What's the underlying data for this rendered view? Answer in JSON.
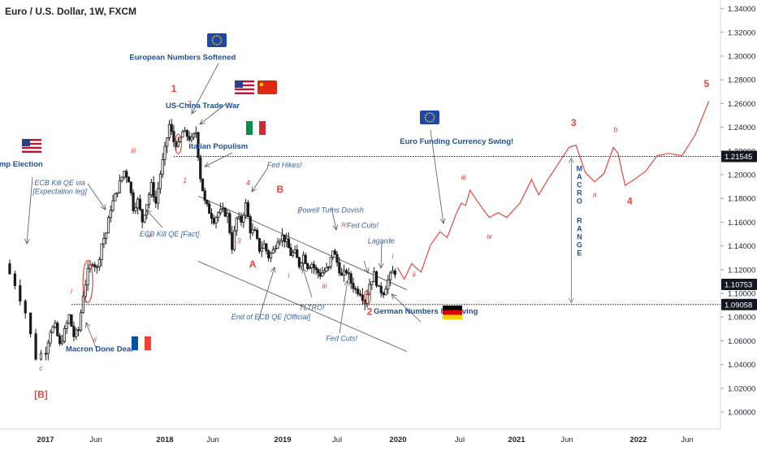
{
  "header": {
    "title": "Euro / U.S. Dollar, 1W, FXCM"
  },
  "colors": {
    "background": "#ffffff",
    "candle": "#1a1a1a",
    "projection": "#e8473f",
    "wave_label": "#e8473f",
    "annotation_blue": "#1f4e96",
    "annotation_italic": "#3a64a8",
    "price_box": "#131722",
    "axis_text": "#1e222d"
  },
  "chart_data": {
    "type": "candlestick",
    "symbol": "EURUSD",
    "timeframe": "1W",
    "source": "FXCM",
    "x_ticks": [
      "2017",
      "Jun",
      "2018",
      "Jun",
      "2019",
      "Jul",
      "2020",
      "Jul",
      "2021",
      "Jun",
      "2022",
      "Jun"
    ],
    "y_ticks": [
      "1.00000",
      "1.02000",
      "1.04000",
      "1.06000",
      "1.08000",
      "1.10000",
      "1.12000",
      "1.14000",
      "1.16000",
      "1.18000",
      "1.20000",
      "1.22000",
      "1.24000",
      "1.26000",
      "1.28000",
      "1.30000",
      "1.32000",
      "1.34000"
    ],
    "ylim": [
      0.985,
      1.348
    ],
    "horizontal_levels": [
      {
        "label": "1.21545",
        "value": 1.21545
      },
      {
        "label": "1.09058",
        "value": 1.09058
      }
    ],
    "last_price": {
      "label": "1.10753",
      "value": 1.10753
    },
    "price_path": [
      {
        "d": "2016-11-14",
        "v": 1.125
      },
      {
        "d": "2016-11-28",
        "v": 1.108
      },
      {
        "d": "2016-12-12",
        "v": 1.084
      },
      {
        "d": "2016-12-26",
        "v": 1.046
      },
      {
        "d": "2017-01-09",
        "v": 1.052
      },
      {
        "d": "2017-01-23",
        "v": 1.069
      },
      {
        "d": "2017-02-06",
        "v": 1.072
      },
      {
        "d": "2017-02-20",
        "v": 1.056
      },
      {
        "d": "2017-03-06",
        "v": 1.068
      },
      {
        "d": "2017-03-20",
        "v": 1.081
      },
      {
        "d": "2017-04-03",
        "v": 1.064
      },
      {
        "d": "2017-04-17",
        "v": 1.069
      },
      {
        "d": "2017-05-01",
        "v": 1.099
      },
      {
        "d": "2017-05-15",
        "v": 1.118
      },
      {
        "d": "2017-05-29",
        "v": 1.127
      },
      {
        "d": "2017-06-12",
        "v": 1.121
      },
      {
        "d": "2017-06-26",
        "v": 1.142
      },
      {
        "d": "2017-07-10",
        "v": 1.151
      },
      {
        "d": "2017-07-24",
        "v": 1.172
      },
      {
        "d": "2017-08-07",
        "v": 1.182
      },
      {
        "d": "2017-08-21",
        "v": 1.193
      },
      {
        "d": "2017-09-04",
        "v": 1.203
      },
      {
        "d": "2017-09-18",
        "v": 1.196
      },
      {
        "d": "2017-10-02",
        "v": 1.172
      },
      {
        "d": "2017-10-16",
        "v": 1.178
      },
      {
        "d": "2017-10-30",
        "v": 1.161
      },
      {
        "d": "2017-11-13",
        "v": 1.176
      },
      {
        "d": "2017-11-27",
        "v": 1.191
      },
      {
        "d": "2017-12-11",
        "v": 1.176
      },
      {
        "d": "2017-12-25",
        "v": 1.201
      },
      {
        "d": "2018-01-08",
        "v": 1.221
      },
      {
        "d": "2018-01-22",
        "v": 1.242
      },
      {
        "d": "2018-02-05",
        "v": 1.228
      },
      {
        "d": "2018-02-19",
        "v": 1.225
      },
      {
        "d": "2018-03-05",
        "v": 1.236
      },
      {
        "d": "2018-03-19",
        "v": 1.233
      },
      {
        "d": "2018-04-02",
        "v": 1.229
      },
      {
        "d": "2018-04-16",
        "v": 1.236
      },
      {
        "d": "2018-04-30",
        "v": 1.198
      },
      {
        "d": "2018-05-14",
        "v": 1.177
      },
      {
        "d": "2018-05-28",
        "v": 1.169
      },
      {
        "d": "2018-06-11",
        "v": 1.162
      },
      {
        "d": "2018-06-25",
        "v": 1.168
      },
      {
        "d": "2018-07-09",
        "v": 1.169
      },
      {
        "d": "2018-07-23",
        "v": 1.166
      },
      {
        "d": "2018-08-06",
        "v": 1.139
      },
      {
        "d": "2018-08-20",
        "v": 1.163
      },
      {
        "d": "2018-09-03",
        "v": 1.161
      },
      {
        "d": "2018-09-17",
        "v": 1.175
      },
      {
        "d": "2018-10-01",
        "v": 1.153
      },
      {
        "d": "2018-10-15",
        "v": 1.151
      },
      {
        "d": "2018-10-29",
        "v": 1.137
      },
      {
        "d": "2018-11-12",
        "v": 1.141
      },
      {
        "d": "2018-11-26",
        "v": 1.131
      },
      {
        "d": "2018-12-10",
        "v": 1.136
      },
      {
        "d": "2018-12-24",
        "v": 1.146
      },
      {
        "d": "2019-01-07",
        "v": 1.148
      },
      {
        "d": "2019-01-21",
        "v": 1.143
      },
      {
        "d": "2019-02-04",
        "v": 1.133
      },
      {
        "d": "2019-02-18",
        "v": 1.134
      },
      {
        "d": "2019-03-04",
        "v": 1.124
      },
      {
        "d": "2019-03-18",
        "v": 1.132
      },
      {
        "d": "2019-04-01",
        "v": 1.123
      },
      {
        "d": "2019-04-15",
        "v": 1.125
      },
      {
        "d": "2019-04-29",
        "v": 1.119
      },
      {
        "d": "2019-05-13",
        "v": 1.116
      },
      {
        "d": "2019-05-27",
        "v": 1.119
      },
      {
        "d": "2019-06-10",
        "v": 1.121
      },
      {
        "d": "2019-06-24",
        "v": 1.137
      },
      {
        "d": "2019-07-08",
        "v": 1.126
      },
      {
        "d": "2019-07-22",
        "v": 1.114
      },
      {
        "d": "2019-08-05",
        "v": 1.119
      },
      {
        "d": "2019-08-19",
        "v": 1.109
      },
      {
        "d": "2019-09-02",
        "v": 1.103
      },
      {
        "d": "2019-09-16",
        "v": 1.101
      },
      {
        "d": "2019-09-30",
        "v": 1.093
      },
      {
        "d": "2019-10-14",
        "v": 1.108
      },
      {
        "d": "2019-10-28",
        "v": 1.116
      },
      {
        "d": "2019-11-11",
        "v": 1.103
      },
      {
        "d": "2019-11-25",
        "v": 1.101
      },
      {
        "d": "2019-12-09",
        "v": 1.111
      },
      {
        "d": "2019-12-23",
        "v": 1.118
      }
    ],
    "projection": [
      {
        "d": "2019-12-30",
        "v": 1.122
      },
      {
        "d": "2020-01-20",
        "v": 1.112
      },
      {
        "d": "2020-02-10",
        "v": 1.125
      },
      {
        "d": "2020-03-09",
        "v": 1.118
      },
      {
        "d": "2020-04-06",
        "v": 1.141
      },
      {
        "d": "2020-05-04",
        "v": 1.152
      },
      {
        "d": "2020-05-25",
        "v": 1.147
      },
      {
        "d": "2020-06-22",
        "v": 1.168
      },
      {
        "d": "2020-07-06",
        "v": 1.176
      },
      {
        "d": "2020-07-20",
        "v": 1.174
      },
      {
        "d": "2020-08-03",
        "v": 1.187
      },
      {
        "d": "2020-08-24",
        "v": 1.179
      },
      {
        "d": "2020-09-14",
        "v": 1.171
      },
      {
        "d": "2020-10-05",
        "v": 1.164
      },
      {
        "d": "2020-11-02",
        "v": 1.168
      },
      {
        "d": "2020-11-30",
        "v": 1.164
      },
      {
        "d": "2021-01-11",
        "v": 1.176
      },
      {
        "d": "2021-02-15",
        "v": 1.196
      },
      {
        "d": "2021-03-08",
        "v": 1.183
      },
      {
        "d": "2021-04-05",
        "v": 1.196
      },
      {
        "d": "2021-05-03",
        "v": 1.208
      },
      {
        "d": "2021-06-07",
        "v": 1.223
      },
      {
        "d": "2021-06-28",
        "v": 1.225
      },
      {
        "d": "2021-07-26",
        "v": 1.202
      },
      {
        "d": "2021-08-23",
        "v": 1.194
      },
      {
        "d": "2021-09-20",
        "v": 1.201
      },
      {
        "d": "2021-10-18",
        "v": 1.223
      },
      {
        "d": "2021-11-01",
        "v": 1.218
      },
      {
        "d": "2021-11-22",
        "v": 1.191
      },
      {
        "d": "2021-12-20",
        "v": 1.196
      },
      {
        "d": "2022-01-24",
        "v": 1.203
      },
      {
        "d": "2022-02-28",
        "v": 1.216
      },
      {
        "d": "2022-04-04",
        "v": 1.218
      },
      {
        "d": "2022-05-16",
        "v": 1.216
      },
      {
        "d": "2022-06-27",
        "v": 1.234
      },
      {
        "d": "2022-08-08",
        "v": 1.262
      }
    ],
    "channel_lines": [
      {
        "from": {
          "d": "2018-04-16",
          "v": 1.182
        },
        "to": {
          "d": "2020-01-27",
          "v": 1.103
        }
      },
      {
        "from": {
          "d": "2018-04-16",
          "v": 1.127
        },
        "to": {
          "d": "2020-01-27",
          "v": 1.051
        }
      }
    ],
    "wave_labels": [
      {
        "text": "1",
        "d": "2018-01-29",
        "v": 1.27,
        "size": "big"
      },
      {
        "text": "2",
        "d": "2019-10-07",
        "v": 1.082,
        "size": "big"
      },
      {
        "text": "3",
        "d": "2021-06-21",
        "v": 1.241,
        "size": "big"
      },
      {
        "text": "4",
        "d": "2021-12-06",
        "v": 1.175,
        "size": "big"
      },
      {
        "text": "5",
        "d": "2022-08-01",
        "v": 1.274,
        "size": "big"
      },
      {
        "text": "[B]",
        "d": "2016-12-26",
        "v": 1.012,
        "size": "big"
      },
      {
        "text": "A",
        "d": "2018-10-01",
        "v": 1.122,
        "size": "big"
      },
      {
        "text": "B",
        "d": "2018-12-24",
        "v": 1.185,
        "size": "big"
      },
      {
        "text": "c",
        "d": "2016-12-26",
        "v": 1.035,
        "size": "small"
      },
      {
        "text": "i",
        "d": "2017-03-20",
        "v": 1.1,
        "size": "small"
      },
      {
        "text": "ii",
        "d": "2017-05-29",
        "v": 1.059,
        "size": "small"
      },
      {
        "text": "iii",
        "d": "2017-09-25",
        "v": 1.218,
        "size": "small"
      },
      {
        "text": "iv",
        "d": "2017-11-13",
        "v": 1.147,
        "size": "small"
      },
      {
        "text": "2",
        "d": "2018-03-19",
        "v": 1.258,
        "size": "small"
      },
      {
        "text": "1",
        "d": "2018-03-05",
        "v": 1.193,
        "size": "small"
      },
      {
        "text": "3",
        "d": "2018-08-20",
        "v": 1.142,
        "size": "small"
      },
      {
        "text": "4",
        "d": "2018-09-17",
        "v": 1.191,
        "size": "small"
      },
      {
        "text": "i",
        "d": "2019-01-21",
        "v": 1.113,
        "size": "small"
      },
      {
        "text": "ii",
        "d": "2019-02-25",
        "v": 1.167,
        "size": "small"
      },
      {
        "text": "iii",
        "d": "2019-05-20",
        "v": 1.104,
        "size": "small"
      },
      {
        "text": "iv",
        "d": "2019-07-22",
        "v": 1.156,
        "size": "small"
      },
      {
        "text": "i",
        "d": "2019-12-16",
        "v": 1.129,
        "size": "small"
      },
      {
        "text": "ii",
        "d": "2020-02-17",
        "v": 1.114,
        "size": "small"
      },
      {
        "text": "iii",
        "d": "2020-07-13",
        "v": 1.196,
        "size": "small"
      },
      {
        "text": "iv",
        "d": "2020-10-05",
        "v": 1.146,
        "size": "small"
      },
      {
        "text": "a",
        "d": "2021-08-23",
        "v": 1.181,
        "size": "small"
      },
      {
        "text": "b",
        "d": "2021-10-25",
        "v": 1.236,
        "size": "small"
      }
    ],
    "annotations": [
      {
        "text": "European Numbers Softened",
        "style": "bold",
        "d": "2018-02-26",
        "v": 1.297
      },
      {
        "text": "US-China Trade War",
        "style": "bold",
        "d": "2018-04-30",
        "v": 1.256
      },
      {
        "text": "Italian Populism",
        "style": "bold",
        "d": "2018-06-18",
        "v": 1.222
      },
      {
        "text": "Trump Election",
        "style": "bold",
        "d": "2016-11-21",
        "v": 1.207
      },
      {
        "text": "Euro Funding Currency Swing!",
        "style": "bold",
        "d": "2020-06-22",
        "v": 1.226
      },
      {
        "text": "German Numbers Improving",
        "style": "bold",
        "d": "2020-03-23",
        "v": 1.083
      },
      {
        "text": "Macron Done Deal",
        "style": "bold",
        "d": "2017-06-12",
        "v": 1.051
      },
      {
        "text": "ECB Kill QE via",
        "style": "italic",
        "d": "2017-02-13",
        "v": 1.191
      },
      {
        "text": "[Expectation leg]",
        "style": "italic",
        "d": "2017-02-13",
        "v": 1.184
      },
      {
        "text": "ECB Kill QE [Fact]",
        "style": "italic",
        "d": "2018-01-15",
        "v": 1.148
      },
      {
        "text": "Fed Hikes!",
        "style": "italic",
        "d": "2019-01-07",
        "v": 1.206
      },
      {
        "text": "Powell Turns Dovish",
        "style": "italic",
        "d": "2019-06-10",
        "v": 1.168
      },
      {
        "text": "Fed Cuts!",
        "style": "italic",
        "d": "2019-09-16",
        "v": 1.155
      },
      {
        "text": "Lagarde",
        "style": "italic",
        "d": "2019-11-11",
        "v": 1.142
      },
      {
        "text": "End of ECB QE [Official]",
        "style": "italic",
        "d": "2018-11-26",
        "v": 1.078
      },
      {
        "text": "TLTRO!",
        "style": "italic",
        "d": "2019-04-08",
        "v": 1.086
      },
      {
        "text": "Fed Cuts!",
        "style": "italic",
        "d": "2019-07-15",
        "v": 1.06
      }
    ],
    "macro_range": {
      "label": "MACRO RANGE",
      "from": 1.09058,
      "to": 1.21545,
      "d": "2021-06-14"
    }
  }
}
